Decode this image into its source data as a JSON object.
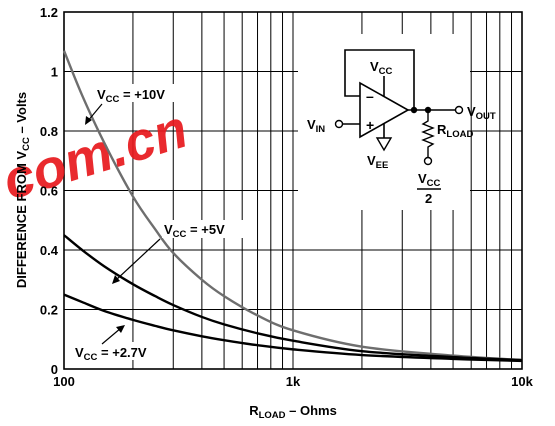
{
  "chart_data": {
    "type": "line",
    "x_scale": "log",
    "xlim": [
      100,
      10000
    ],
    "ylim": [
      0,
      1.2
    ],
    "x_ticks": [
      100,
      1000,
      10000
    ],
    "x_tick_labels": [
      "100",
      "1k",
      "10k"
    ],
    "y_ticks": [
      0,
      0.2,
      0.4,
      0.6,
      0.8,
      1,
      1.2
    ],
    "y_tick_labels": [
      "0",
      "0.2",
      "0.4",
      "0.6",
      "0.8",
      "1",
      "1.2"
    ],
    "xlabel": {
      "main": "R",
      "sub": "LOAD",
      "rest": " – Ohms"
    },
    "ylabel": {
      "main": "DIFFERENCE FROM V",
      "sub": "CC",
      "rest": " – Volts"
    },
    "grid": true,
    "series": [
      {
        "name": {
          "main": "V",
          "sub": "CC",
          "rest": " = +10V"
        },
        "x": [
          100,
          120,
          150,
          200,
          250,
          300,
          400,
          500,
          700,
          1000,
          2000,
          5000,
          10000
        ],
        "y": [
          1.07,
          0.92,
          0.76,
          0.58,
          0.47,
          0.39,
          0.3,
          0.245,
          0.18,
          0.13,
          0.075,
          0.045,
          0.03
        ]
      },
      {
        "name": {
          "main": "V",
          "sub": "CC",
          "rest": " = +5V"
        },
        "x": [
          100,
          120,
          150,
          200,
          250,
          300,
          400,
          500,
          700,
          1000,
          2000,
          5000,
          10000
        ],
        "y": [
          0.45,
          0.4,
          0.345,
          0.285,
          0.245,
          0.215,
          0.175,
          0.15,
          0.12,
          0.095,
          0.06,
          0.04,
          0.03
        ]
      },
      {
        "name": {
          "main": "V",
          "sub": "CC",
          "rest": " = +2.7V"
        },
        "x": [
          100,
          120,
          150,
          200,
          250,
          300,
          400,
          500,
          700,
          1000,
          2000,
          5000,
          10000
        ],
        "y": [
          0.25,
          0.225,
          0.195,
          0.165,
          0.145,
          0.13,
          0.11,
          0.097,
          0.08,
          0.066,
          0.047,
          0.034,
          0.027
        ]
      }
    ]
  },
  "inset": {
    "vcc": {
      "main": "V",
      "sub": "CC"
    },
    "vee": {
      "main": "V",
      "sub": "EE"
    },
    "vin": {
      "main": "V",
      "sub": "IN"
    },
    "vout": {
      "main": "V",
      "sub": "OUT"
    },
    "rload": {
      "main": "R",
      "sub": "LOAD"
    },
    "vcc2_top": {
      "main": "V",
      "sub": "CC"
    },
    "vcc2_bottom": "2",
    "minus": "–",
    "plus": "+"
  },
  "watermark": "com.cn",
  "colors": {
    "line": "#000000",
    "watermark": "#e8191d",
    "top_curve": "#6e6e6e"
  }
}
